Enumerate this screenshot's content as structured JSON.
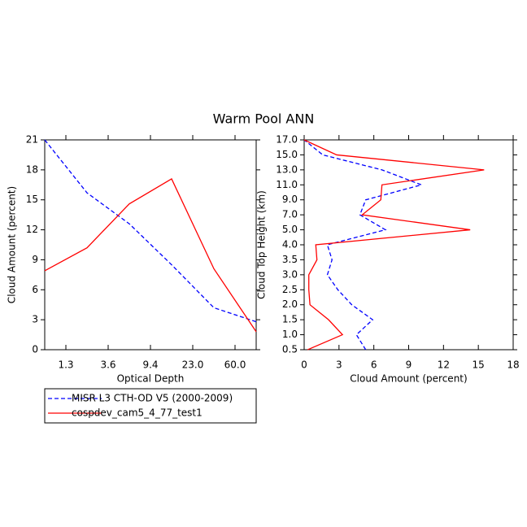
{
  "title": "Warm Pool ANN",
  "chart_data": [
    {
      "type": "line",
      "xlabel": "Optical Depth",
      "ylabel": "Cloud Amount (percent)",
      "x": [
        0,
        1,
        2,
        3,
        4,
        5
      ],
      "xlim": [
        0,
        5
      ],
      "xticks": [
        {
          "value": 0.5,
          "label": "1.3"
        },
        {
          "value": 1.5,
          "label": "3.6"
        },
        {
          "value": 2.5,
          "label": "9.4"
        },
        {
          "value": 3.5,
          "label": "23.0"
        },
        {
          "value": 4.5,
          "label": "60.0"
        }
      ],
      "ylim": [
        0,
        21
      ],
      "yticks": [
        0,
        3,
        6,
        9,
        12,
        15,
        18,
        21
      ],
      "legend": "below",
      "series": [
        {
          "name": "MISR L3 CTH-OD V5 (2000-2009)",
          "color": "#0000ff",
          "dash": true,
          "values": [
            21,
            15.7,
            12.6,
            8.5,
            4.2,
            2.8
          ]
        },
        {
          "name": "cospdev_cam5_4_77_test1",
          "color": "#ff0000",
          "dash": false,
          "values": [
            7.9,
            10.2,
            14.6,
            17.1,
            8.1,
            1.8
          ]
        }
      ]
    },
    {
      "type": "line",
      "xlabel": "Cloud Amount (percent)",
      "ylabel": "Cloud Top Height (km)",
      "y": [
        0,
        1,
        2,
        3,
        4,
        5,
        6,
        7,
        8,
        9,
        10,
        11,
        12,
        13,
        14
      ],
      "ylim": [
        0,
        14
      ],
      "yticks": [
        {
          "value": 0,
          "label": "0.5"
        },
        {
          "value": 1,
          "label": "1.0"
        },
        {
          "value": 2,
          "label": "1.5"
        },
        {
          "value": 3,
          "label": "2.0"
        },
        {
          "value": 4,
          "label": "2.5"
        },
        {
          "value": 5,
          "label": "3.0"
        },
        {
          "value": 6,
          "label": "3.5"
        },
        {
          "value": 7,
          "label": "4.0"
        },
        {
          "value": 8,
          "label": "5.0"
        },
        {
          "value": 9,
          "label": "7.0"
        },
        {
          "value": 10,
          "label": "9.0"
        },
        {
          "value": 11,
          "label": "11.0"
        },
        {
          "value": 12,
          "label": "13.0"
        },
        {
          "value": 13,
          "label": "15.0"
        },
        {
          "value": 14,
          "label": "17.0"
        }
      ],
      "xlim": [
        0,
        18
      ],
      "xticks": [
        0,
        3,
        6,
        9,
        12,
        15,
        18
      ],
      "series": [
        {
          "color": "#0000ff",
          "dash": true,
          "values": [
            5.3,
            4.5,
            5.9,
            4.1,
            2.9,
            2.0,
            2.4,
            2.0,
            7.0,
            4.8,
            5.3,
            10.1,
            6.7,
            1.6,
            0
          ]
        },
        {
          "color": "#ff0000",
          "dash": false,
          "values": [
            0.3,
            3.3,
            2.1,
            0.5,
            0.4,
            0.4,
            1.1,
            1.0,
            14.3,
            5.0,
            6.6,
            6.7,
            15.5,
            2.8,
            0
          ]
        }
      ]
    }
  ]
}
